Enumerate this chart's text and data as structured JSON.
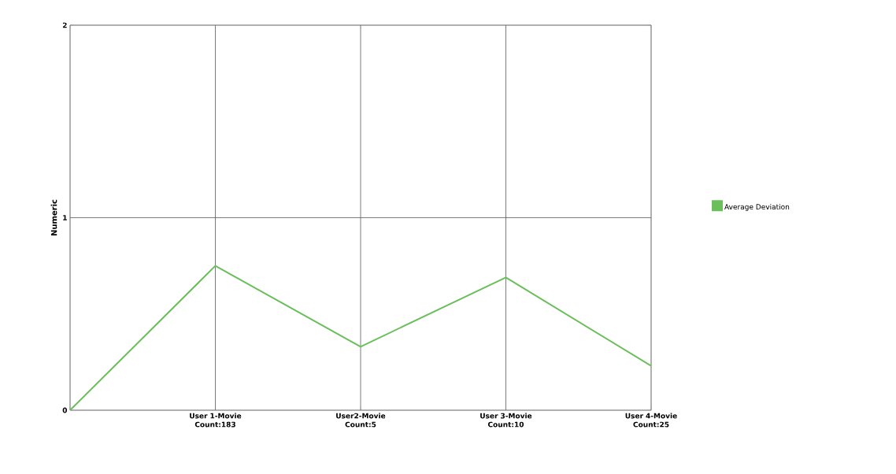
{
  "chart_data": {
    "type": "line",
    "ylabel": "Numeric",
    "categories": [
      null,
      "User 1-Movie Count:183",
      "User2-Movie Count:5",
      "User 3-Movie Count:10",
      "User 4-Movie Count:25"
    ],
    "series": [
      {
        "name": "Average Deviation",
        "color": "#6abf5a",
        "values": [
          0,
          0.75,
          0.33,
          0.69,
          0.23
        ]
      }
    ],
    "ylim": [
      0,
      2
    ],
    "yticks": [
      0,
      1,
      2
    ],
    "grid": true,
    "legend": "right",
    "marker": "none",
    "line_style": "solid"
  }
}
